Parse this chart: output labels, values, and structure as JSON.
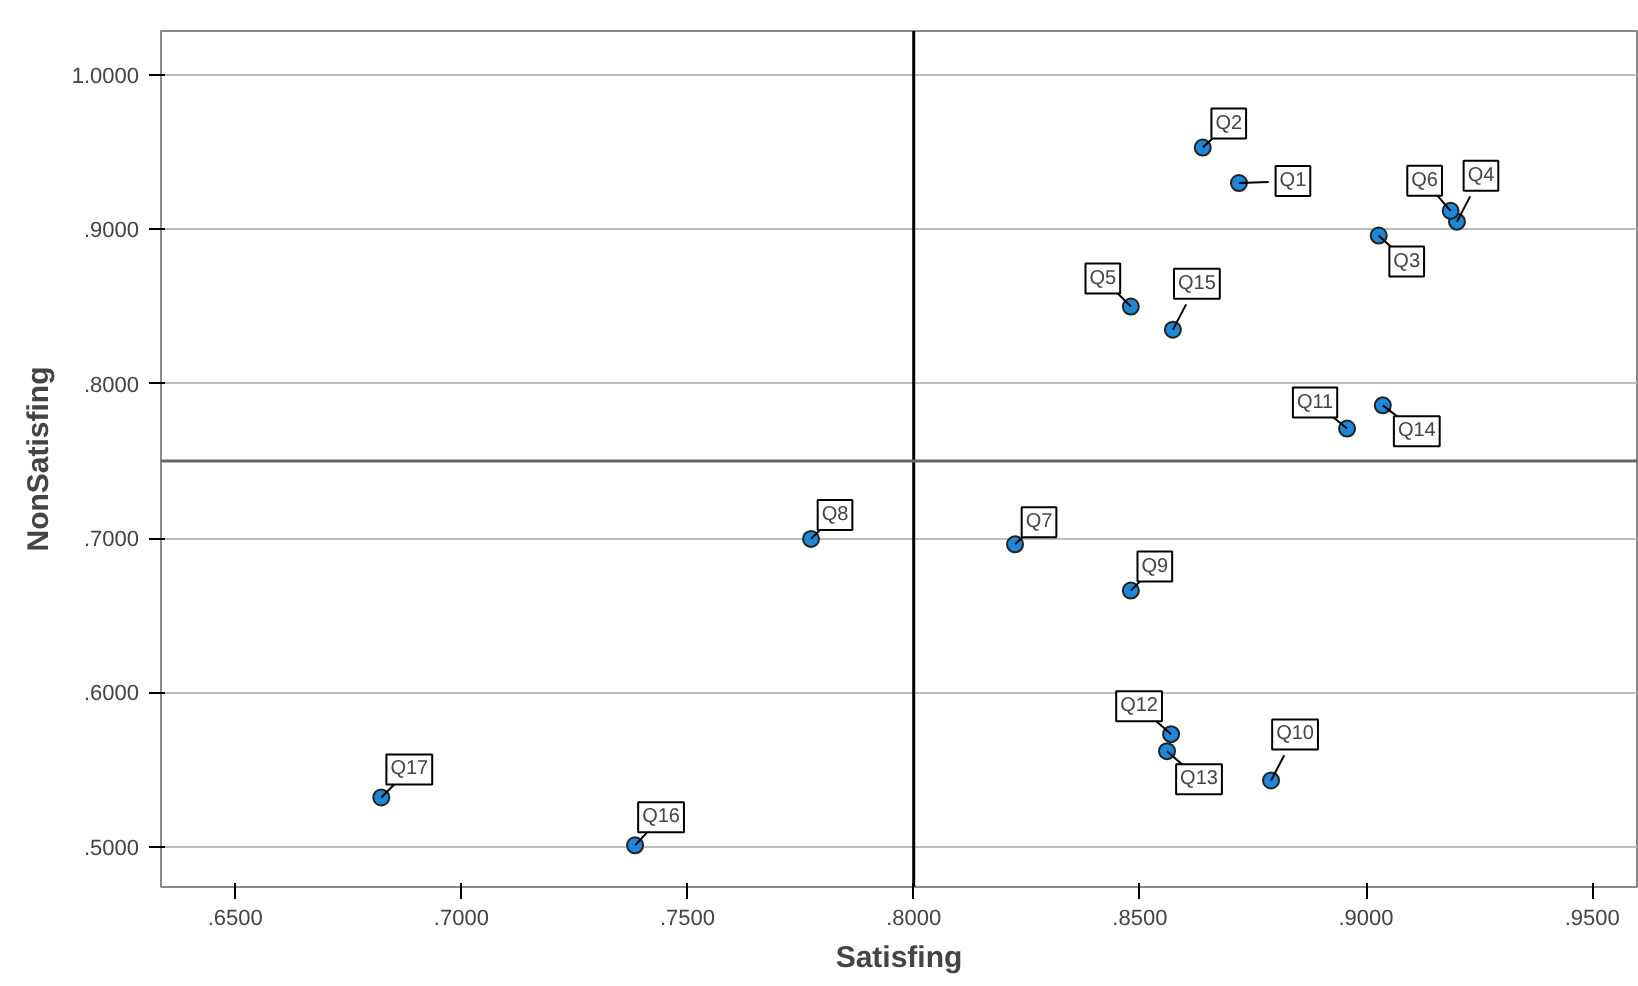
{
  "chart_data": {
    "type": "scatter",
    "xlabel": "Satisfing",
    "ylabel": "NonSatisfing",
    "x": [
      0.8719,
      0.8639,
      0.9028,
      0.9201,
      0.848,
      0.9187,
      0.8224,
      0.7773,
      0.848,
      0.879,
      0.8958,
      0.8569,
      0.856,
      0.9037,
      0.8573,
      0.7384,
      0.6823
    ],
    "series": [
      {
        "color": "#1e88d8",
        "values": [
          0.93,
          0.953,
          0.896,
          0.905,
          0.85,
          0.912,
          0.696,
          0.6995,
          0.666,
          0.543,
          0.771,
          0.573,
          0.562,
          0.786,
          0.835,
          0.501,
          0.532
        ]
      }
    ],
    "marker": "circle",
    "xlim": [
      0.6336,
      0.9599
    ],
    "ylim": [
      0.474,
      1.0285
    ],
    "xticks": [
      {
        "value": 0.65,
        "label": ".6500"
      },
      {
        "value": 0.7,
        "label": ".7000"
      },
      {
        "value": 0.75,
        "label": ".7500"
      },
      {
        "value": 0.8,
        "label": ".8000"
      },
      {
        "value": 0.85,
        "label": ".8500"
      },
      {
        "value": 0.9,
        "label": ".9000"
      },
      {
        "value": 0.95,
        "label": ".9500"
      }
    ],
    "yticks": [
      {
        "value": 0.5,
        "label": ".5000"
      },
      {
        "value": 0.6,
        "label": ".6000"
      },
      {
        "value": 0.7,
        "label": ".7000"
      },
      {
        "value": 0.8,
        "label": ".8000"
      },
      {
        "value": 0.9,
        "label": ".9000"
      },
      {
        "value": 1.0,
        "label": "1.0000"
      }
    ],
    "grid": "y",
    "ref_lines": [
      {
        "axis": "x",
        "value": 0.8,
        "color": "#000000"
      },
      {
        "axis": "y",
        "value": 0.75,
        "color": "#666666"
      }
    ],
    "annotations": [
      {
        "text": "Q1",
        "x": 0.8719,
        "y": 0.93
      },
      {
        "text": "Q2",
        "x": 0.8639,
        "y": 0.953
      },
      {
        "text": "Q3",
        "x": 0.9028,
        "y": 0.896
      },
      {
        "text": "Q4",
        "x": 0.9201,
        "y": 0.905
      },
      {
        "text": "Q5",
        "x": 0.848,
        "y": 0.85
      },
      {
        "text": "Q6",
        "x": 0.9187,
        "y": 0.912
      },
      {
        "text": "Q7",
        "x": 0.8224,
        "y": 0.696
      },
      {
        "text": "Q8",
        "x": 0.7773,
        "y": 0.6995
      },
      {
        "text": "Q9",
        "x": 0.848,
        "y": 0.666
      },
      {
        "text": "Q10",
        "x": 0.879,
        "y": 0.543
      },
      {
        "text": "Q11",
        "x": 0.8958,
        "y": 0.771
      },
      {
        "text": "Q12",
        "x": 0.8569,
        "y": 0.573
      },
      {
        "text": "Q13",
        "x": 0.856,
        "y": 0.562
      },
      {
        "text": "Q14",
        "x": 0.9037,
        "y": 0.786
      },
      {
        "text": "Q15",
        "x": 0.8573,
        "y": 0.835
      },
      {
        "text": "Q16",
        "x": 0.7384,
        "y": 0.501
      },
      {
        "text": "Q17",
        "x": 0.6823,
        "y": 0.532
      }
    ]
  }
}
